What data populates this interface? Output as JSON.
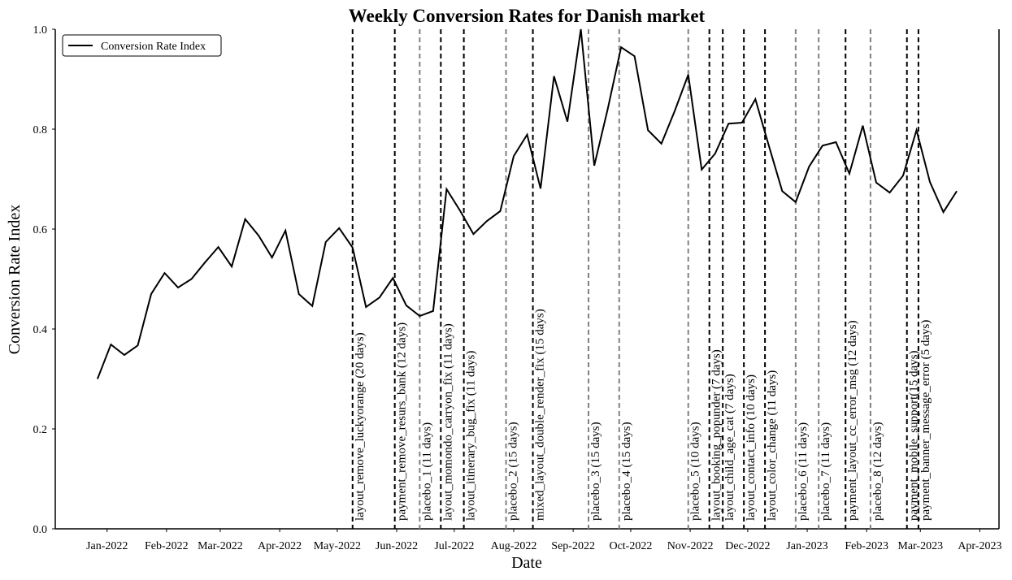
{
  "chart_data": {
    "type": "line",
    "title": "Weekly Conversion Rates for Danish market",
    "x_label": "Date",
    "y_label": "Conversion Rate Index",
    "x": [
      "2021-12-27",
      "2022-01-03",
      "2022-01-10",
      "2022-01-17",
      "2022-01-24",
      "2022-01-31",
      "2022-02-07",
      "2022-02-14",
      "2022-02-21",
      "2022-02-28",
      "2022-03-07",
      "2022-03-14",
      "2022-03-21",
      "2022-03-28",
      "2022-04-04",
      "2022-04-11",
      "2022-04-18",
      "2022-04-25",
      "2022-05-02",
      "2022-05-09",
      "2022-05-16",
      "2022-05-23",
      "2022-05-30",
      "2022-06-06",
      "2022-06-13",
      "2022-06-20",
      "2022-06-27",
      "2022-07-04",
      "2022-07-11",
      "2022-07-18",
      "2022-07-25",
      "2022-08-01",
      "2022-08-08",
      "2022-08-15",
      "2022-08-22",
      "2022-08-29",
      "2022-09-05",
      "2022-09-12",
      "2022-09-19",
      "2022-09-26",
      "2022-10-03",
      "2022-10-10",
      "2022-10-17",
      "2022-10-24",
      "2022-10-31",
      "2022-11-07",
      "2022-11-14",
      "2022-11-21",
      "2022-11-28",
      "2022-12-05",
      "2022-12-12",
      "2022-12-19",
      "2022-12-26",
      "2023-01-02",
      "2023-01-09",
      "2023-01-16",
      "2023-01-23",
      "2023-01-30",
      "2023-02-06",
      "2023-02-13",
      "2023-02-20",
      "2023-02-27",
      "2023-03-06",
      "2023-03-13",
      "2023-03-20"
    ],
    "series": [
      {
        "name": "Conversion Rate Index",
        "color": "#000000",
        "values": [
          0.3,
          0.369,
          0.348,
          0.367,
          0.47,
          0.512,
          0.483,
          0.5,
          0.533,
          0.564,
          0.525,
          0.62,
          0.587,
          0.543,
          0.597,
          0.47,
          0.446,
          0.574,
          0.602,
          0.563,
          0.444,
          0.463,
          0.502,
          0.447,
          0.426,
          0.436,
          0.68,
          0.637,
          0.59,
          0.616,
          0.636,
          0.746,
          0.789,
          0.681,
          0.906,
          0.815,
          1.0,
          0.727,
          0.84,
          0.964,
          0.946,
          0.798,
          0.771,
          0.837,
          0.909,
          0.719,
          0.751,
          0.811,
          0.813,
          0.86,
          0.767,
          0.676,
          0.654,
          0.725,
          0.767,
          0.774,
          0.711,
          0.807,
          0.693,
          0.673,
          0.707,
          0.798,
          0.694,
          0.634,
          0.676
        ]
      }
    ],
    "events": [
      {
        "date": "2022-05-09",
        "label": "layout_remove_luckyorange (20 days)",
        "color": "#000000"
      },
      {
        "date": "2022-05-31",
        "label": "payment_remove_resurs_bank (12 days)",
        "color": "#000000"
      },
      {
        "date": "2022-06-13",
        "label": "placebo_1 (11 days)",
        "color": "#808080"
      },
      {
        "date": "2022-06-24",
        "label": "layout_momondo_carryon_fix (11 days)",
        "color": "#000000"
      },
      {
        "date": "2022-07-06",
        "label": "layout_itinerary_bug_fix (11 days)",
        "color": "#000000"
      },
      {
        "date": "2022-07-28",
        "label": "placebo_2 (15 days)",
        "color": "#808080"
      },
      {
        "date": "2022-08-11",
        "label": "mixed_layout_double_render_fix (15 days)",
        "color": "#000000"
      },
      {
        "date": "2022-09-09",
        "label": "placebo_3 (15 days)",
        "color": "#808080"
      },
      {
        "date": "2022-09-25",
        "label": "placebo_4 (15 days)",
        "color": "#808080"
      },
      {
        "date": "2022-10-31",
        "label": "placebo_5 (10 days)",
        "color": "#808080"
      },
      {
        "date": "2022-11-11",
        "label": "layout_booking_popunder (7 days)",
        "color": "#000000"
      },
      {
        "date": "2022-11-18",
        "label": "layout_child_age_cat (7 days)",
        "color": "#000000"
      },
      {
        "date": "2022-11-29",
        "label": "layout_contact_info (10 days)",
        "color": "#000000"
      },
      {
        "date": "2022-12-10",
        "label": "layout_color_change (11 days)",
        "color": "#000000"
      },
      {
        "date": "2022-12-26",
        "label": "placebo_6 (11 days)",
        "color": "#808080"
      },
      {
        "date": "2023-01-07",
        "label": "placebo_7 (11 days)",
        "color": "#808080"
      },
      {
        "date": "2023-01-21",
        "label": "payment_layout_cc_error_msg (12 days)",
        "color": "#000000"
      },
      {
        "date": "2023-02-03",
        "label": "placebo_8 (12 days)",
        "color": "#808080"
      },
      {
        "date": "2023-02-22",
        "label": "payment_mobile_support(15 days)",
        "color": "#000000"
      },
      {
        "date": "2023-02-28",
        "label": "payment_banner_message_error (5 days)",
        "color": "#000000"
      }
    ],
    "xlim": [
      "2021-12-05",
      "2023-04-11"
    ],
    "xticks": [
      {
        "value": "2022-01",
        "label": "Jan-2022"
      },
      {
        "value": "2022-02",
        "label": "Feb-2022"
      },
      {
        "value": "2022-03",
        "label": "Mar-2022"
      },
      {
        "value": "2022-04",
        "label": "Apr-2022"
      },
      {
        "value": "2022-05",
        "label": "May-2022"
      },
      {
        "value": "2022-06",
        "label": "Jun-2022"
      },
      {
        "value": "2022-07",
        "label": "Jul-2022"
      },
      {
        "value": "2022-08",
        "label": "Aug-2022"
      },
      {
        "value": "2022-09",
        "label": "Sep-2022"
      },
      {
        "value": "2022-10",
        "label": "Oct-2022"
      },
      {
        "value": "2022-11",
        "label": "Nov-2022"
      },
      {
        "value": "2022-12",
        "label": "Dec-2022"
      },
      {
        "value": "2023-01",
        "label": "Jan-2023"
      },
      {
        "value": "2023-02",
        "label": "Feb-2023"
      },
      {
        "value": "2023-03",
        "label": "Mar-2023"
      },
      {
        "value": "2023-04",
        "label": "Apr-2023"
      }
    ],
    "ylim": [
      0,
      1
    ],
    "yticks": [
      {
        "value": 0,
        "label": "0.0"
      },
      0.2,
      0.4,
      0.6,
      0.8,
      {
        "value": 1,
        "label": "1.0"
      }
    ],
    "grid": false,
    "legend": "upper left"
  }
}
